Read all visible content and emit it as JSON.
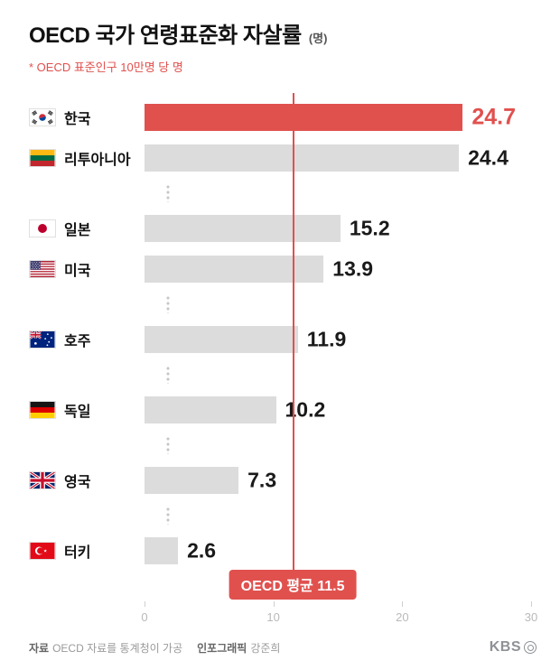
{
  "header": {
    "title": "OECD 국가 연령표준화 자살률",
    "title_unit": "(명)",
    "subtitle": "* OECD 표준인구 10만명 당 명"
  },
  "chart_data": {
    "type": "bar",
    "orientation": "horizontal",
    "title": "OECD 국가 연령표준화 자살률 (명)",
    "xlabel": "",
    "ylabel": "",
    "categories": [
      "한국",
      "리투아니아",
      "일본",
      "미국",
      "호주",
      "독일",
      "영국",
      "터키"
    ],
    "values": [
      24.7,
      24.4,
      15.2,
      13.9,
      11.9,
      10.2,
      7.3,
      2.6
    ],
    "flags": [
      "kr",
      "lt",
      "jp",
      "us",
      "au",
      "de",
      "gb",
      "tr"
    ],
    "highlight_index": 0,
    "separators_after": [
      1,
      3,
      4,
      5,
      6
    ],
    "average": {
      "label": "OECD 평균 11.5",
      "value": 11.5
    },
    "xlim": [
      0,
      30
    ],
    "x_ticks": [
      0,
      10,
      20,
      30
    ],
    "grid": false,
    "legend": false,
    "colors": {
      "highlight": "#E0514E",
      "bar": "#dcdcdc",
      "avg_line": "#E0514E"
    }
  },
  "footer": {
    "source_label": "자료",
    "source_text": "OECD 자료를 통계청이 가공",
    "credit_label": "인포그래픽",
    "credit_text": "강준희",
    "logo": "KBS"
  }
}
